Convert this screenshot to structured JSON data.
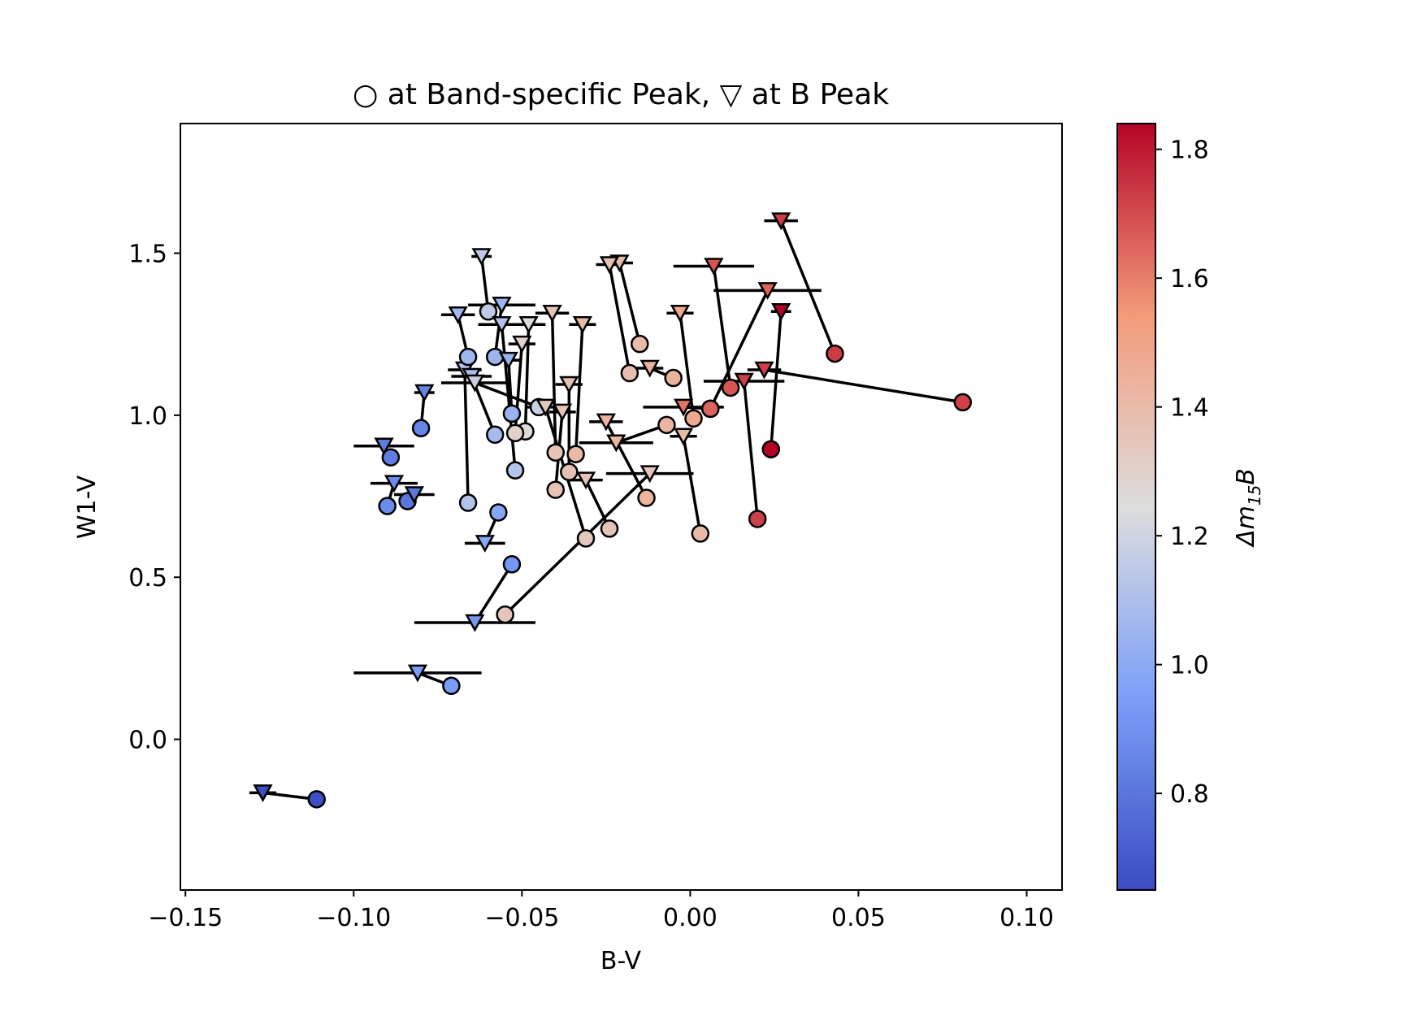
{
  "chart_data": {
    "type": "scatter",
    "title": "○ at Band-specific Peak, ▽ at B Peak",
    "xlabel": "B-V",
    "ylabel": "W1-V",
    "xlim": [
      -0.1515,
      0.1105
    ],
    "ylim": [
      -0.465,
      1.9
    ],
    "x_ticks": [
      -0.15,
      -0.1,
      -0.05,
      0.0,
      0.05,
      0.1
    ],
    "x_tick_labels": [
      "−0.15",
      "−0.10",
      "−0.05",
      "0.00",
      "0.05",
      "0.10"
    ],
    "y_ticks": [
      0.0,
      0.5,
      1.0,
      1.5
    ],
    "y_tick_labels": [
      "0.0",
      "0.5",
      "1.0",
      "1.5"
    ],
    "colorbar": {
      "label": "Δm15B",
      "label_main": "Δm",
      "label_sub": "15",
      "label_tail": "B",
      "cmap": "coolwarm",
      "range": [
        0.65,
        1.84
      ],
      "ticks": [
        0.8,
        1.0,
        1.2,
        1.4,
        1.6,
        1.8
      ],
      "tick_labels": [
        "0.8",
        "1.0",
        "1.2",
        "1.4",
        "1.6",
        "1.8"
      ]
    },
    "legend": {
      "circle": "Band-specific Peak",
      "triangle": "B Peak"
    },
    "series": [
      {
        "dm15": 0.66,
        "circle": [
          -0.111,
          -0.185
        ],
        "triangle": [
          -0.127,
          -0.165
        ],
        "xerr": 0.004
      },
      {
        "dm15": 0.94,
        "circle": [
          -0.071,
          0.165
        ],
        "triangle": [
          -0.081,
          0.205
        ],
        "xerr": 0.019
      },
      {
        "dm15": 0.92,
        "circle": [
          -0.053,
          0.54
        ],
        "triangle": [
          -0.064,
          0.36
        ],
        "xerr": 0.018
      },
      {
        "dm15": 1.35,
        "circle": [
          -0.055,
          0.385
        ],
        "triangle": [
          -0.012,
          0.82
        ],
        "xerr": 0.013
      },
      {
        "dm15": 0.85,
        "circle": [
          -0.08,
          0.96
        ],
        "triangle": [
          -0.079,
          1.07
        ],
        "xerr": 0.003
      },
      {
        "dm15": 0.82,
        "circle": [
          -0.089,
          0.87
        ],
        "triangle": [
          -0.091,
          0.905
        ],
        "xerr": 0.009
      },
      {
        "dm15": 0.88,
        "circle": [
          -0.09,
          0.72
        ],
        "triangle": [
          -0.088,
          0.79
        ],
        "xerr": 0.007
      },
      {
        "dm15": 0.8,
        "circle": [
          -0.084,
          0.735
        ],
        "triangle": [
          -0.082,
          0.755
        ],
        "xerr": 0.006
      },
      {
        "dm15": 1.12,
        "circle": [
          -0.066,
          0.73
        ],
        "triangle": [
          -0.067,
          1.14
        ],
        "xerr": 0.005
      },
      {
        "dm15": 0.98,
        "circle": [
          -0.057,
          0.7
        ],
        "triangle": [
          -0.061,
          0.605
        ],
        "xerr": 0.006
      },
      {
        "dm15": 1.06,
        "circle": [
          -0.066,
          1.18
        ],
        "triangle": [
          -0.069,
          1.31
        ],
        "xerr": 0.005
      },
      {
        "dm15": 1.15,
        "circle": [
          -0.06,
          1.32
        ],
        "triangle": [
          -0.062,
          1.49
        ],
        "xerr": 0.003
      },
      {
        "dm15": 1.05,
        "circle": [
          -0.058,
          1.18
        ],
        "triangle": [
          -0.056,
          1.34
        ],
        "xerr": 0.01
      },
      {
        "dm15": 1.08,
        "circle": [
          -0.058,
          0.94
        ],
        "triangle": [
          -0.065,
          1.12
        ],
        "xerr": 0.006
      },
      {
        "dm15": 1.04,
        "circle": [
          -0.053,
          1.005
        ],
        "triangle": [
          -0.054,
          1.17
        ],
        "xerr": 0.004
      },
      {
        "dm15": 1.12,
        "circle": [
          -0.052,
          0.83
        ],
        "triangle": [
          -0.056,
          1.28
        ],
        "xerr": 0.007
      },
      {
        "dm15": 1.25,
        "circle": [
          -0.049,
          0.95
        ],
        "triangle": [
          -0.048,
          1.28
        ],
        "xerr": 0.005
      },
      {
        "dm15": 1.3,
        "circle": [
          -0.052,
          0.945
        ],
        "triangle": [
          -0.05,
          1.22
        ],
        "xerr": 0.004
      },
      {
        "dm15": 1.18,
        "circle": [
          -0.045,
          1.025
        ],
        "triangle": [
          -0.064,
          1.1
        ],
        "xerr": 0.01
      },
      {
        "dm15": 1.36,
        "circle": [
          -0.04,
          0.885
        ],
        "triangle": [
          -0.041,
          1.315
        ],
        "xerr": 0.005
      },
      {
        "dm15": 1.36,
        "circle": [
          -0.04,
          0.77
        ],
        "triangle": [
          -0.038,
          1.01
        ],
        "xerr": 0.004
      },
      {
        "dm15": 1.38,
        "circle": [
          -0.036,
          0.825
        ],
        "triangle": [
          -0.036,
          1.095
        ],
        "xerr": 0.004
      },
      {
        "dm15": 1.4,
        "circle": [
          -0.034,
          0.88
        ],
        "triangle": [
          -0.032,
          1.28
        ],
        "xerr": 0.004
      },
      {
        "dm15": 1.34,
        "circle": [
          -0.031,
          0.62
        ],
        "triangle": [
          -0.043,
          1.025
        ],
        "xerr": 0.006
      },
      {
        "dm15": 1.36,
        "circle": [
          -0.024,
          0.65
        ],
        "triangle": [
          -0.031,
          0.8
        ],
        "xerr": 0.005
      },
      {
        "dm15": 1.4,
        "circle": [
          -0.015,
          1.22
        ],
        "triangle": [
          -0.021,
          1.47
        ],
        "xerr": 0.004
      },
      {
        "dm15": 1.38,
        "circle": [
          -0.018,
          1.13
        ],
        "triangle": [
          -0.024,
          1.465
        ],
        "xerr": 0.004
      },
      {
        "dm15": 1.43,
        "circle": [
          -0.013,
          0.745
        ],
        "triangle": [
          -0.025,
          0.98
        ],
        "xerr": 0.005
      },
      {
        "dm15": 1.42,
        "circle": [
          -0.007,
          0.97
        ],
        "triangle": [
          -0.022,
          0.915
        ],
        "xerr": 0.011
      },
      {
        "dm15": 1.44,
        "circle": [
          -0.005,
          1.115
        ],
        "triangle": [
          -0.012,
          1.145
        ],
        "xerr": 0.004
      },
      {
        "dm15": 1.48,
        "circle": [
          0.001,
          0.99
        ],
        "triangle": [
          -0.003,
          1.315
        ],
        "xerr": 0.004
      },
      {
        "dm15": 1.4,
        "circle": [
          0.003,
          0.635
        ],
        "triangle": [
          -0.002,
          0.935
        ],
        "xerr": 0.004
      },
      {
        "dm15": 1.62,
        "circle": [
          0.006,
          1.02
        ],
        "triangle": [
          -0.002,
          1.025
        ],
        "xerr": 0.012
      },
      {
        "dm15": 1.68,
        "circle": [
          0.012,
          1.085
        ],
        "triangle": [
          0.007,
          1.46
        ],
        "xerr": 0.012
      },
      {
        "dm15": 1.72,
        "circle": [
          0.02,
          0.68
        ],
        "triangle": [
          0.016,
          1.105
        ],
        "xerr": 0.012
      },
      {
        "dm15": 1.65,
        "circle": [
          0.006,
          1.02
        ],
        "triangle": [
          0.023,
          1.385
        ],
        "xerr": 0.016
      },
      {
        "dm15": 1.84,
        "circle": [
          0.024,
          0.895
        ],
        "triangle": [
          0.027,
          1.32
        ],
        "xerr": 0.003
      },
      {
        "dm15": 1.73,
        "circle": [
          0.043,
          1.19
        ],
        "triangle": [
          0.027,
          1.6
        ],
        "xerr": 0.005
      },
      {
        "dm15": 1.72,
        "circle": [
          0.081,
          1.04
        ],
        "triangle": [
          0.022,
          1.14
        ],
        "xerr": 0.005
      }
    ]
  }
}
